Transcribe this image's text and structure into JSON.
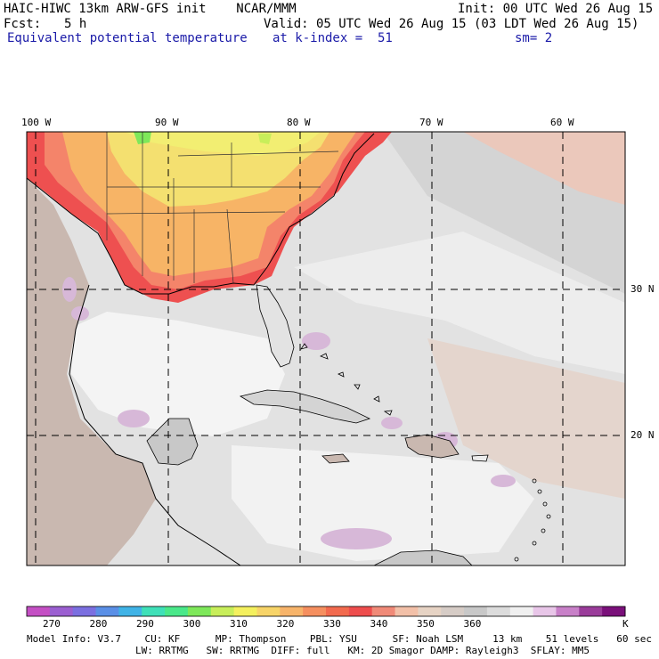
{
  "header": {
    "title": "HAIC-HIWC 13km ARW-GFS init    NCAR/MMM",
    "init": "Init: 00 UTC Wed 26 Aug 15",
    "fcst_label": "Fcst:",
    "fcst_value": "5 h",
    "valid": "Valid: 05 UTC Wed 26 Aug 15 (03 LDT Wed 26 Aug 15)",
    "field": "Equivalent potential temperature",
    "level": "at k-index =  51",
    "smoothing": "sm= 2"
  },
  "map": {
    "lon_labels": [
      "100 W",
      "90 W",
      "80 W",
      "70 W",
      "60 W"
    ],
    "lat_labels": [
      "30 N",
      "20 N"
    ]
  },
  "colorbar": {
    "colors": [
      "#c44fc4",
      "#9b5fd1",
      "#7b6fe0",
      "#5a8fe6",
      "#40b3e6",
      "#3fe0b8",
      "#4ae88a",
      "#7ee85a",
      "#c8ee5a",
      "#f4f05e",
      "#f7d468",
      "#f7b46a",
      "#f58f5f",
      "#f26a4e",
      "#ee4d4d",
      "#f08a78",
      "#f2c0a8",
      "#e6d3c4",
      "#d6ccc6",
      "#c8c8c8",
      "#dcdcdc",
      "#f0f0f0",
      "#e8c6e8",
      "#c880c8",
      "#9a3c9a",
      "#7a107a"
    ],
    "labels": [
      "270",
      "280",
      "290",
      "300",
      "310",
      "320",
      "330",
      "340",
      "350",
      "360"
    ],
    "unit": "K"
  },
  "footer": {
    "line1": "Model Info: V3.7    CU: KF      MP: Thompson    PBL: YSU      SF: Noah LSM     13 km    51 levels   60 sec",
    "line2": "LW: RRTMG   SW: RRTMG  DIFF: full   KM: 2D Smagor DAMP: Rayleigh3  SFLAY: MM5"
  }
}
